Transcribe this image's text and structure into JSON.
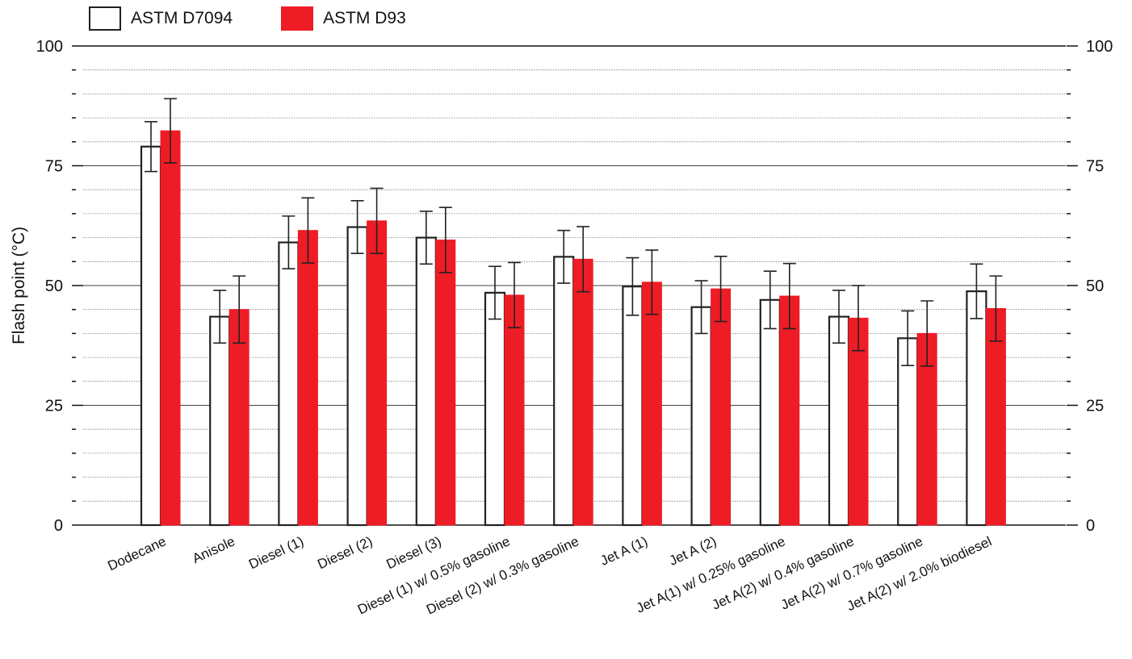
{
  "chart_data": {
    "type": "bar",
    "ylabel": "Flash point (°C)",
    "ylim": [
      0,
      100
    ],
    "yticks": [
      "0",
      "25",
      "50",
      "75",
      "100"
    ],
    "grid": true,
    "legend_placement": "top-left",
    "categories": [
      "Dodecane",
      "Anisole",
      "Diesel (1)",
      "Diesel (2)",
      "Diesel (3)",
      "Diesel (1) w/ 0.5% gasoline",
      "Diesel (2) w/ 0.3% gasoline",
      "Jet A (1)",
      "Jet A (2)",
      "Jet A(1) w/ 0.25% gasoline",
      "Jet A(2) w/ 0.4% gasoline",
      "Jet A(2) w/ 0.7% gasoline",
      "Jet A(2) w/ 2.0% biodiesel"
    ],
    "series": [
      {
        "name": "ASTM D7094",
        "fill": "#ffffff",
        "stroke": "#222222",
        "values": [
          79,
          43.5,
          59,
          62.2,
          60,
          48.5,
          56,
          49.8,
          45.5,
          47,
          43.5,
          39,
          48.8
        ],
        "errors": [
          5.2,
          5.5,
          5.5,
          5.5,
          5.5,
          5.5,
          5.5,
          6,
          5.5,
          6,
          5.5,
          5.7,
          5.7
        ]
      },
      {
        "name": "ASTM D93",
        "fill": "#ee1c25",
        "stroke": "#ee1c25",
        "values": [
          82.3,
          45,
          61.5,
          63.5,
          59.5,
          48,
          55.5,
          50.7,
          49.3,
          47.8,
          43.2,
          40,
          45.2
        ],
        "errors": [
          6.7,
          7,
          6.8,
          6.8,
          6.8,
          6.8,
          6.8,
          6.7,
          6.8,
          6.8,
          6.8,
          6.8,
          6.8
        ]
      }
    ]
  }
}
